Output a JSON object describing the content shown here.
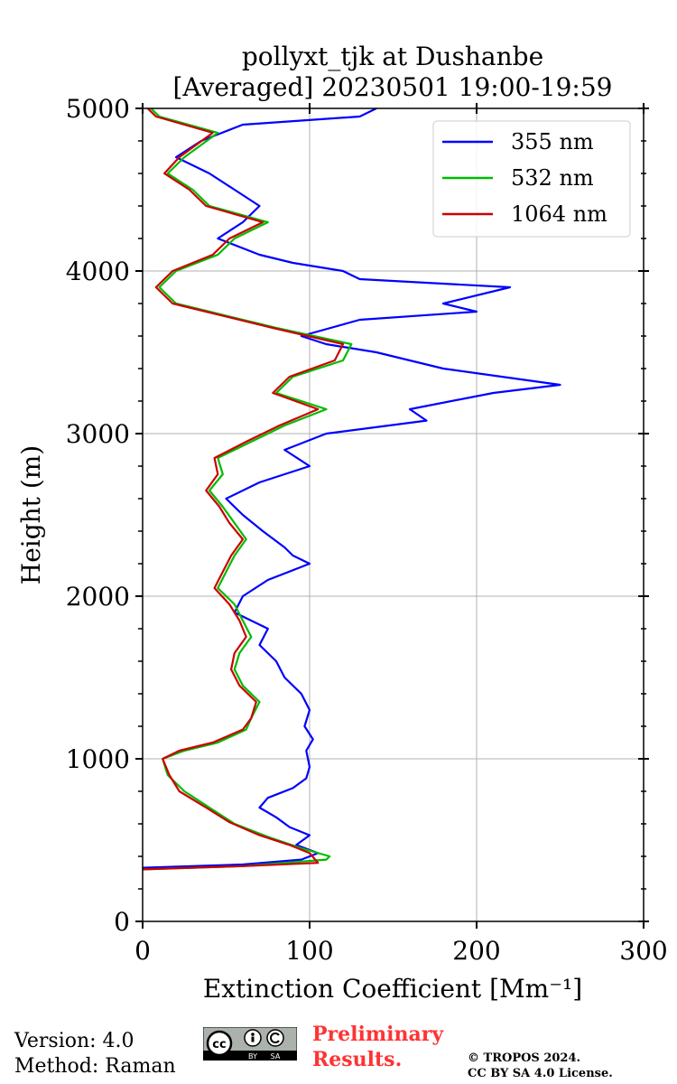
{
  "chart_data": {
    "type": "line",
    "title": [
      "pollyxt_tjk at Dushanbe",
      "[Averaged] 20230501 19:00-19:59"
    ],
    "xlabel": "Extinction Coefficient [Mm⁻¹]",
    "ylabel": "Height (m)",
    "xlim": [
      0,
      300
    ],
    "ylim": [
      0,
      5000
    ],
    "xticks": [
      "0",
      "100",
      "200",
      "300"
    ],
    "yticks": [
      "0",
      "1000",
      "2000",
      "3000",
      "4000",
      "5000"
    ],
    "grid": true,
    "legend_position": "top-right",
    "series": [
      {
        "name": "355 nm",
        "color": "#0000ff",
        "points": [
          [
            0,
            330
          ],
          [
            60,
            350
          ],
          [
            95,
            380
          ],
          [
            105,
            420
          ],
          [
            92,
            470
          ],
          [
            100,
            530
          ],
          [
            88,
            580
          ],
          [
            80,
            640
          ],
          [
            70,
            700
          ],
          [
            75,
            760
          ],
          [
            90,
            820
          ],
          [
            98,
            880
          ],
          [
            100,
            950
          ],
          [
            98,
            1050
          ],
          [
            102,
            1120
          ],
          [
            97,
            1200
          ],
          [
            100,
            1300
          ],
          [
            95,
            1400
          ],
          [
            85,
            1500
          ],
          [
            80,
            1600
          ],
          [
            70,
            1700
          ],
          [
            75,
            1800
          ],
          [
            55,
            1900
          ],
          [
            60,
            2000
          ],
          [
            75,
            2100
          ],
          [
            100,
            2200
          ],
          [
            90,
            2250
          ],
          [
            85,
            2300
          ],
          [
            72,
            2400
          ],
          [
            60,
            2500
          ],
          [
            50,
            2600
          ],
          [
            70,
            2700
          ],
          [
            100,
            2800
          ],
          [
            85,
            2900
          ],
          [
            110,
            3000
          ],
          [
            170,
            3080
          ],
          [
            160,
            3150
          ],
          [
            210,
            3250
          ],
          [
            250,
            3300
          ],
          [
            180,
            3400
          ],
          [
            140,
            3500
          ],
          [
            110,
            3550
          ],
          [
            95,
            3600
          ],
          [
            130,
            3700
          ],
          [
            200,
            3750
          ],
          [
            180,
            3800
          ],
          [
            220,
            3900
          ],
          [
            130,
            3950
          ],
          [
            120,
            4000
          ],
          [
            90,
            4050
          ],
          [
            70,
            4100
          ],
          [
            45,
            4200
          ],
          [
            60,
            4300
          ],
          [
            70,
            4400
          ],
          [
            55,
            4500
          ],
          [
            40,
            4600
          ],
          [
            20,
            4700
          ],
          [
            35,
            4800
          ],
          [
            60,
            4900
          ],
          [
            130,
            4950
          ],
          [
            140,
            5000
          ]
        ]
      },
      {
        "name": "532 nm",
        "color": "#00bb00",
        "points": [
          [
            0,
            320
          ],
          [
            60,
            340
          ],
          [
            110,
            380
          ],
          [
            112,
            400
          ],
          [
            95,
            450
          ],
          [
            75,
            520
          ],
          [
            55,
            600
          ],
          [
            40,
            700
          ],
          [
            25,
            800
          ],
          [
            15,
            900
          ],
          [
            12,
            1000
          ],
          [
            25,
            1050
          ],
          [
            45,
            1100
          ],
          [
            62,
            1180
          ],
          [
            65,
            1250
          ],
          [
            70,
            1350
          ],
          [
            60,
            1450
          ],
          [
            55,
            1550
          ],
          [
            58,
            1650
          ],
          [
            65,
            1750
          ],
          [
            60,
            1850
          ],
          [
            55,
            1950
          ],
          [
            45,
            2050
          ],
          [
            50,
            2150
          ],
          [
            55,
            2250
          ],
          [
            62,
            2350
          ],
          [
            55,
            2450
          ],
          [
            48,
            2550
          ],
          [
            40,
            2650
          ],
          [
            48,
            2750
          ],
          [
            45,
            2850
          ],
          [
            65,
            2950
          ],
          [
            85,
            3050
          ],
          [
            110,
            3150
          ],
          [
            80,
            3250
          ],
          [
            90,
            3350
          ],
          [
            120,
            3450
          ],
          [
            125,
            3550
          ],
          [
            80,
            3650
          ],
          [
            40,
            3750
          ],
          [
            20,
            3800
          ],
          [
            10,
            3900
          ],
          [
            20,
            4000
          ],
          [
            45,
            4100
          ],
          [
            55,
            4200
          ],
          [
            75,
            4300
          ],
          [
            40,
            4400
          ],
          [
            30,
            4500
          ],
          [
            15,
            4600
          ],
          [
            25,
            4700
          ],
          [
            45,
            4850
          ],
          [
            10,
            4950
          ],
          [
            5,
            5000
          ]
        ]
      },
      {
        "name": "1064 nm",
        "color": "#cc0000",
        "points": [
          [
            0,
            320
          ],
          [
            60,
            340
          ],
          [
            105,
            360
          ],
          [
            100,
            420
          ],
          [
            88,
            470
          ],
          [
            70,
            530
          ],
          [
            52,
            610
          ],
          [
            38,
            700
          ],
          [
            22,
            800
          ],
          [
            16,
            900
          ],
          [
            12,
            1000
          ],
          [
            22,
            1050
          ],
          [
            42,
            1100
          ],
          [
            60,
            1180
          ],
          [
            65,
            1250
          ],
          [
            68,
            1350
          ],
          [
            58,
            1450
          ],
          [
            53,
            1550
          ],
          [
            55,
            1650
          ],
          [
            62,
            1750
          ],
          [
            58,
            1850
          ],
          [
            52,
            1950
          ],
          [
            43,
            2050
          ],
          [
            48,
            2150
          ],
          [
            53,
            2250
          ],
          [
            60,
            2350
          ],
          [
            52,
            2450
          ],
          [
            46,
            2550
          ],
          [
            38,
            2650
          ],
          [
            45,
            2750
          ],
          [
            43,
            2850
          ],
          [
            62,
            2950
          ],
          [
            82,
            3050
          ],
          [
            105,
            3150
          ],
          [
            78,
            3250
          ],
          [
            88,
            3350
          ],
          [
            115,
            3450
          ],
          [
            120,
            3550
          ],
          [
            78,
            3650
          ],
          [
            38,
            3750
          ],
          [
            18,
            3800
          ],
          [
            8,
            3900
          ],
          [
            18,
            4000
          ],
          [
            42,
            4100
          ],
          [
            52,
            4200
          ],
          [
            72,
            4300
          ],
          [
            38,
            4400
          ],
          [
            28,
            4500
          ],
          [
            13,
            4600
          ],
          [
            22,
            4700
          ],
          [
            42,
            4850
          ],
          [
            8,
            4950
          ],
          [
            3,
            5000
          ]
        ]
      }
    ]
  },
  "footer": {
    "version": "Version: 4.0",
    "method": "Method: Raman",
    "preliminary_1": "Preliminary",
    "preliminary_2": "Results.",
    "preliminary_color": "#ff3333",
    "copyright_1": "© TROPOS 2024.",
    "copyright_2": "CC BY SA 4.0 License.",
    "license_logo_text": [
      "cc",
      "BY",
      "SA"
    ]
  }
}
